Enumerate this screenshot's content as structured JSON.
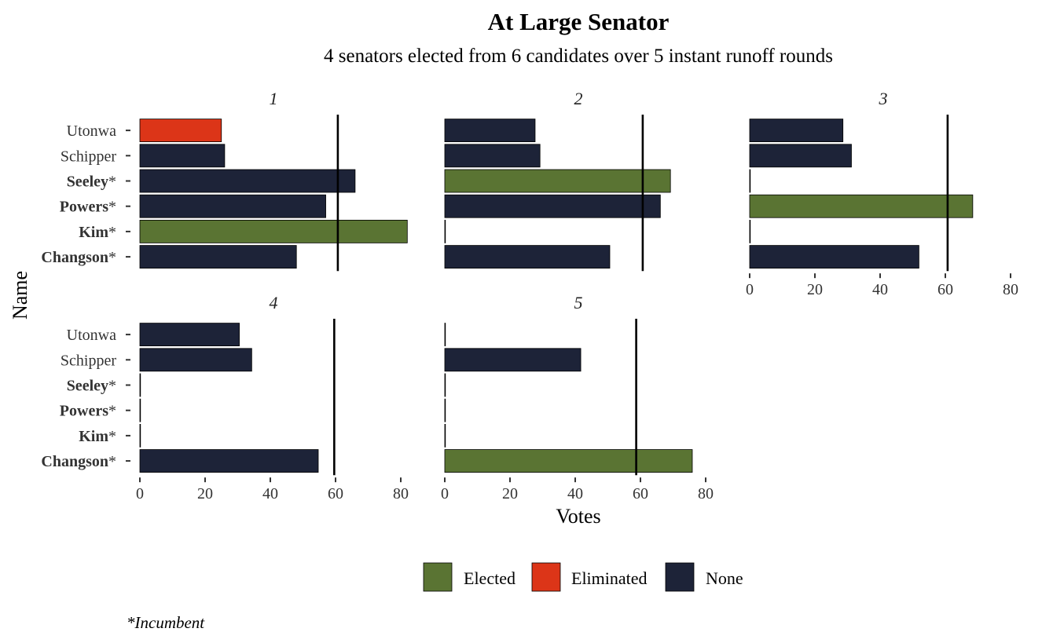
{
  "chart_data": {
    "type": "bar",
    "orientation": "horizontal",
    "title": "At Large Senator",
    "subtitle": "4 senators elected from 6 candidates over 5 instant runoff rounds",
    "ylabel": "Name",
    "xlabel": "Votes",
    "xlim": [
      0,
      80
    ],
    "xticks": [
      "0",
      "20",
      "40",
      "60",
      "80"
    ],
    "grid": false,
    "legend_position": "bottom",
    "colors": {
      "Elected": "#5a7433",
      "Eliminated": "#dc3518",
      "None": "#1d2338"
    },
    "legend": [
      "Elected",
      "Eliminated",
      "None"
    ],
    "candidates": [
      {
        "name": "Utonwa",
        "incumbent": false
      },
      {
        "name": "Schipper",
        "incumbent": false
      },
      {
        "name": "Seeley",
        "incumbent": true
      },
      {
        "name": "Powers",
        "incumbent": true
      },
      {
        "name": "Kim",
        "incumbent": true
      },
      {
        "name": "Changson",
        "incumbent": true
      }
    ],
    "panels": [
      {
        "round": "1",
        "threshold": 60.7,
        "values": [
          25,
          26,
          66,
          57,
          82,
          48
        ],
        "status": [
          "Eliminated",
          "None",
          "None",
          "None",
          "Elected",
          "None"
        ]
      },
      {
        "round": "2",
        "threshold": 60.7,
        "values": [
          27.7,
          29.2,
          69.2,
          66.1,
          0,
          50.6
        ],
        "status": [
          "None",
          "None",
          "Elected",
          "None",
          "None",
          "None"
        ]
      },
      {
        "round": "3",
        "threshold": 60.7,
        "values": [
          28.6,
          31.2,
          0,
          68.4,
          0,
          51.9
        ],
        "status": [
          "None",
          "None",
          "None",
          "Elected",
          "None",
          "None"
        ]
      },
      {
        "round": "4",
        "threshold": 59.6,
        "values": [
          30.5,
          34.3,
          0,
          0,
          0,
          54.7
        ],
        "status": [
          "None",
          "None",
          "None",
          "None",
          "None",
          "None"
        ]
      },
      {
        "round": "5",
        "threshold": 58.7,
        "values": [
          0,
          41.7,
          0,
          0,
          0,
          75.9
        ],
        "status": [
          "None",
          "None",
          "None",
          "None",
          "None",
          "Elected"
        ]
      }
    ]
  },
  "footnote": "*Incumbent"
}
